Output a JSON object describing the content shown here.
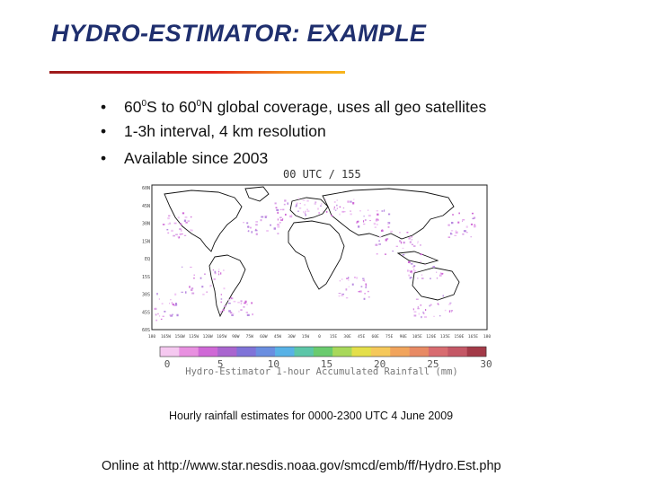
{
  "slide": {
    "title": "HYDRO-ESTIMATOR: EXAMPLE",
    "bullets": [
      {
        "marker": "•",
        "parts": [
          "60",
          "0",
          "S to 60",
          "0",
          "N global coverage, uses all geo satellites"
        ]
      },
      {
        "marker": "•",
        "text": "1-3h interval, 4 km resolution"
      },
      {
        "marker": "•",
        "text": "Available since 2003"
      }
    ],
    "caption": "Hourly rainfall estimates for 0000-2300 UTC 4 June 2009",
    "online": "Online at http://www.star.nesdis.noaa.gov/smcd/emb/ff/Hydro.Est.php"
  },
  "map": {
    "header": "00 UTC / 155",
    "lat_labels": [
      "60N",
      "45N",
      "30N",
      "15N",
      "EQ",
      "15S",
      "30S",
      "45S",
      "60S"
    ],
    "lon_labels": [
      "180",
      "165W",
      "150W",
      "135W",
      "120W",
      "105W",
      "90W",
      "75W",
      "60W",
      "45W",
      "30W",
      "15W",
      "0",
      "15E",
      "30E",
      "45E",
      "60E",
      "75E",
      "90E",
      "105E",
      "120E",
      "135E",
      "150E",
      "165E",
      "180"
    ],
    "colorbar": {
      "ticks": [
        "0",
        "5",
        "10",
        "15",
        "20",
        "25",
        "30"
      ],
      "title": "Hydro-Estimator 1-hour Accumulated Rainfall (mm)",
      "colors": [
        "#f5c8f0",
        "#e890e0",
        "#cf68d6",
        "#a965cf",
        "#7f73d8",
        "#6a8ee0",
        "#58b2e6",
        "#5cc6a8",
        "#6acb6e",
        "#a8d85a",
        "#e4df4a",
        "#f5c85a",
        "#f1a45c",
        "#e88a64",
        "#d86c70",
        "#c45866",
        "#a33a48"
      ]
    }
  }
}
